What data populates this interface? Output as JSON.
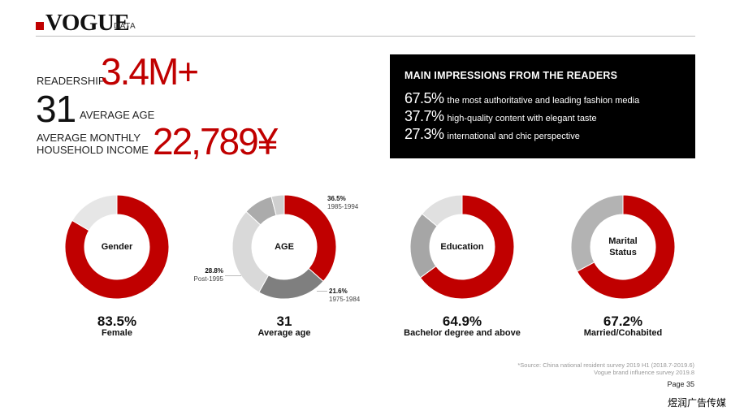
{
  "header": {
    "logo": "VOGUE",
    "label": "DATA"
  },
  "stats": {
    "readership_label": "READERSHIP",
    "readership_value": "3.4M+",
    "age_value": "31",
    "age_label": "AVERAGE AGE",
    "income_label": "AVERAGE MONTHLY HOUSEHOLD INCOME",
    "income_value": "22,789¥"
  },
  "impressions": {
    "title": "MAIN IMPRESSIONS FROM THE READERS",
    "items": [
      {
        "pct": "67.5%",
        "text": "the most authoritative and leading fashion media"
      },
      {
        "pct": "37.7%",
        "text": "high-quality content with elegant taste"
      },
      {
        "pct": "27.3%",
        "text": "international and chic perspective"
      }
    ]
  },
  "donuts": [
    {
      "center": "Gender",
      "kpi_value": "83.5%",
      "kpi_label": "Female",
      "segments": [
        {
          "value": 83.5,
          "color": "#c00000"
        },
        {
          "value": 16.5,
          "color": "#e6e6e6"
        }
      ]
    },
    {
      "center": "AGE",
      "kpi_value": "31",
      "kpi_label": "Average age",
      "segments": [
        {
          "value": 36.5,
          "color": "#c00000"
        },
        {
          "value": 21.6,
          "color": "#7f7f7f"
        },
        {
          "value": 28.8,
          "color": "#d9d9d9"
        },
        {
          "value": 9.1,
          "color": "#ababab"
        },
        {
          "value": 4.0,
          "color": "#cfcfcf"
        }
      ],
      "callouts": [
        {
          "pct": "36.5%",
          "label": "1985-1994"
        },
        {
          "pct": "21.6%",
          "label": "1975-1984"
        },
        {
          "pct": "28.8%",
          "label": "Post-1995"
        }
      ]
    },
    {
      "center": "Education",
      "kpi_value": "64.9%",
      "kpi_label": "Bachelor degree and above",
      "segments": [
        {
          "value": 64.9,
          "color": "#c00000"
        },
        {
          "value": 21.1,
          "color": "#a6a6a6"
        },
        {
          "value": 14.0,
          "color": "#e0e0e0"
        }
      ]
    },
    {
      "center": "Marital Status",
      "kpi_value": "67.2%",
      "kpi_label": "Married/Cohabited",
      "segments": [
        {
          "value": 67.2,
          "color": "#c00000"
        },
        {
          "value": 32.8,
          "color": "#b3b3b3"
        }
      ]
    }
  ],
  "footer": {
    "source_1": "*Source: China national resident survey 2019 H1 (2018.7-2019.6)",
    "source_2": "Vogue brand influence survey 2019.8",
    "page": "Page  35",
    "watermark": "煜润广告传媒"
  }
}
